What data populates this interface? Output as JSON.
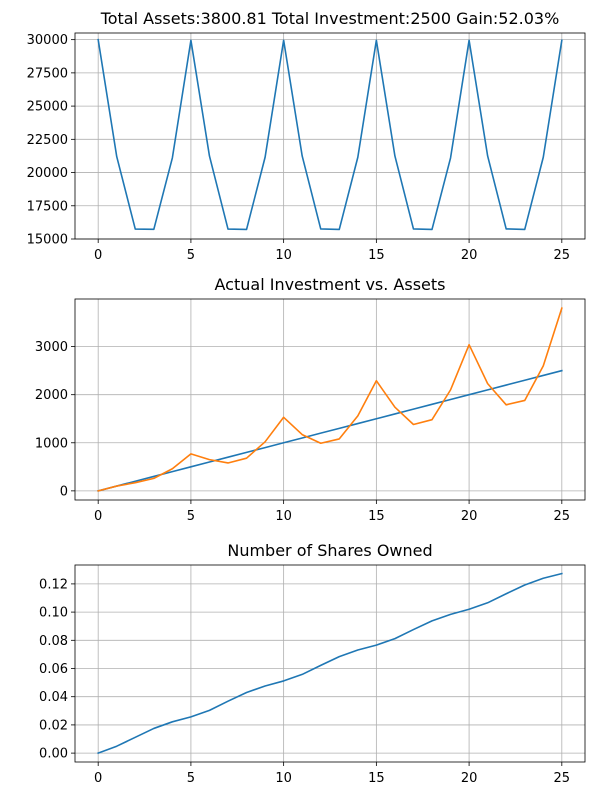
{
  "chart_data": [
    {
      "type": "line",
      "title": "Total Assets:3800.81  Total Investment:2500  Gain:52.03%",
      "xlabel": "",
      "ylabel": "",
      "xlim": [
        -1.25,
        26.25
      ],
      "ylim": [
        15000,
        30500
      ],
      "xticks": [
        0,
        5,
        10,
        15,
        20,
        25
      ],
      "yticks": [
        15000,
        17500,
        20000,
        22500,
        25000,
        27500,
        30000
      ],
      "grid": true,
      "x": [
        0,
        1,
        2,
        3,
        4,
        5,
        6,
        7,
        8,
        9,
        10,
        11,
        12,
        13,
        14,
        15,
        16,
        17,
        18,
        19,
        20,
        21,
        22,
        23,
        24,
        25
      ],
      "series": [
        {
          "color": "#1f77b4",
          "values": [
            30000,
            21200,
            15750,
            15730,
            21100,
            29950,
            21250,
            15750,
            15720,
            21150,
            29950,
            21250,
            15760,
            15720,
            21150,
            29950,
            21250,
            15760,
            15720,
            21100,
            29950,
            21250,
            15760,
            15720,
            21150,
            29950
          ]
        }
      ]
    },
    {
      "type": "line",
      "title": "Actual Investment vs. Assets",
      "xlabel": "",
      "ylabel": "",
      "xlim": [
        -1.25,
        26.25
      ],
      "ylim": [
        -190,
        3990
      ],
      "xticks": [
        0,
        5,
        10,
        15,
        20,
        25
      ],
      "yticks": [
        0,
        1000,
        2000,
        3000
      ],
      "grid": true,
      "x": [
        0,
        1,
        2,
        3,
        4,
        5,
        6,
        7,
        8,
        9,
        10,
        11,
        12,
        13,
        14,
        15,
        16,
        17,
        18,
        19,
        20,
        21,
        22,
        23,
        24,
        25
      ],
      "series": [
        {
          "color": "#1f77b4",
          "values": [
            0,
            100,
            200,
            300,
            400,
            500,
            600,
            700,
            800,
            900,
            1000,
            1100,
            1200,
            1300,
            1400,
            1500,
            1600,
            1700,
            1800,
            1900,
            2000,
            2100,
            2200,
            2300,
            2400,
            2500
          ]
        },
        {
          "color": "#ff7f0e",
          "values": [
            0,
            100,
            170,
            260,
            460,
            770,
            650,
            580,
            680,
            1020,
            1530,
            1170,
            990,
            1080,
            1560,
            2290,
            1740,
            1380,
            1480,
            2100,
            3040,
            2230,
            1790,
            1880,
            2600,
            3800
          ]
        }
      ]
    },
    {
      "type": "line",
      "title": "Number of Shares Owned",
      "xlabel": "",
      "ylabel": "",
      "xlim": [
        -1.25,
        26.25
      ],
      "ylim": [
        -0.0063,
        0.1334
      ],
      "xticks": [
        0,
        5,
        10,
        15,
        20,
        25
      ],
      "yticks": [
        0.0,
        0.02,
        0.04,
        0.06,
        0.08,
        0.1,
        0.12
      ],
      "ytick_decimals": 2,
      "grid": true,
      "x": [
        0,
        1,
        2,
        3,
        4,
        5,
        6,
        7,
        8,
        9,
        10,
        11,
        12,
        13,
        14,
        15,
        16,
        17,
        18,
        19,
        20,
        21,
        22,
        23,
        24,
        25
      ],
      "series": [
        {
          "color": "#1f77b4",
          "values": [
            0.0,
            0.0049,
            0.0112,
            0.0175,
            0.0222,
            0.0257,
            0.0303,
            0.0368,
            0.043,
            0.0476,
            0.0512,
            0.0558,
            0.0622,
            0.0684,
            0.0731,
            0.0766,
            0.0812,
            0.0876,
            0.0938,
            0.0984,
            0.102,
            0.1066,
            0.113,
            0.1192,
            0.124,
            0.1273
          ]
        }
      ]
    }
  ]
}
